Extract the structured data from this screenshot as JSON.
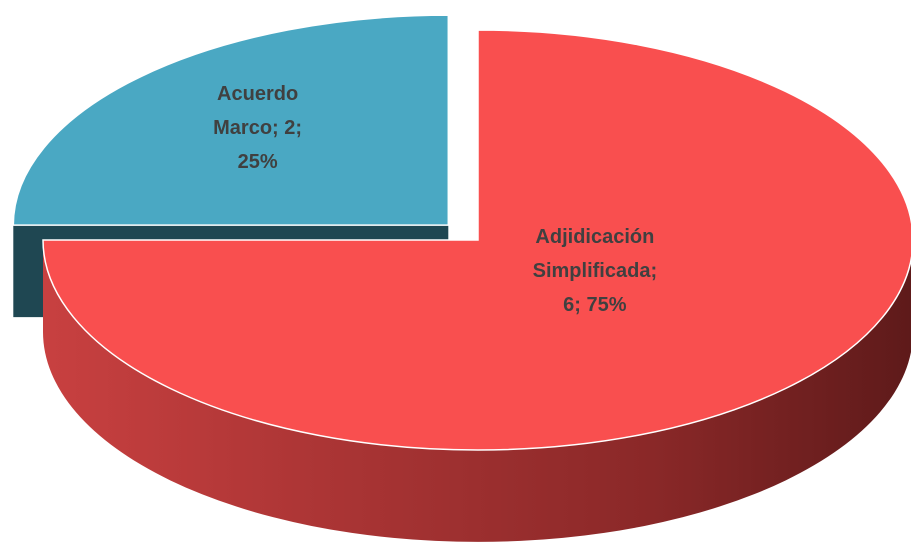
{
  "chart_data": {
    "type": "pie3d",
    "categories": [
      "Adjidicación Simplificada",
      "Acuerdo Marco"
    ],
    "values": [
      6,
      2
    ],
    "percents": [
      75,
      25
    ],
    "percent_labels": [
      "75%",
      "25%"
    ],
    "label_separator": ";",
    "colors": [
      "#f94f4f",
      "#4aa8c3"
    ]
  }
}
